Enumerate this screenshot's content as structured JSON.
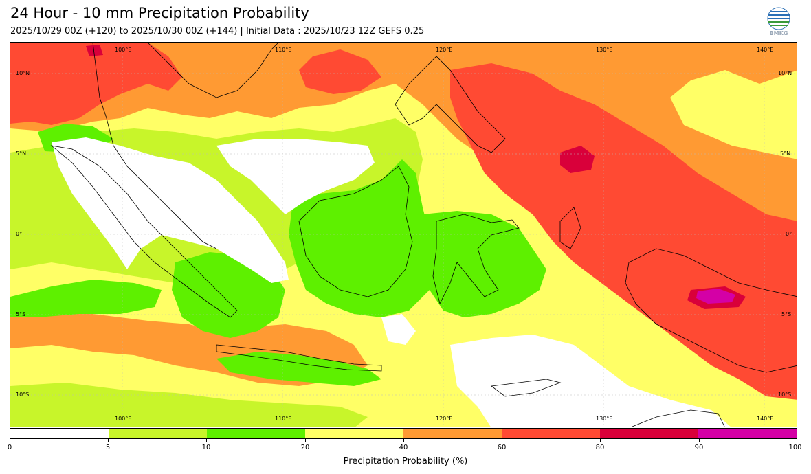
{
  "header": {
    "title": "24 Hour - 10 mm Precipitation Probability",
    "subtitle": "2025/10/29 00Z (+120) to 2025/10/30 00Z (+144) | Initial Data : 2025/10/23 12Z GEFS 0.25",
    "logo_text": "BMKG"
  },
  "map": {
    "lon_labels": [
      "100°E",
      "110°E",
      "120°E",
      "130°E",
      "140°E"
    ],
    "lat_labels": [
      "10°N",
      "5°N",
      "0°",
      "5°S",
      "10°S"
    ]
  },
  "colorbar": {
    "tick_labels": [
      "0",
      "5",
      "10",
      "20",
      "40",
      "60",
      "80",
      "90",
      "100"
    ],
    "colors": [
      "#ffffff",
      "#c8f52a",
      "#5ef000",
      "#ffff66",
      "#ff9a33",
      "#ff4a33",
      "#d9003a",
      "#d400a6"
    ],
    "axis_title": "Precipitation Probability (%)"
  },
  "colors": {
    "white": "#ffffff",
    "lightgreen": "#c8f52a",
    "green": "#5ef000",
    "yellow": "#ffff66",
    "orange": "#ff9a33",
    "red": "#ff4a33",
    "crimson": "#d9003a",
    "magenta": "#d400a6"
  }
}
